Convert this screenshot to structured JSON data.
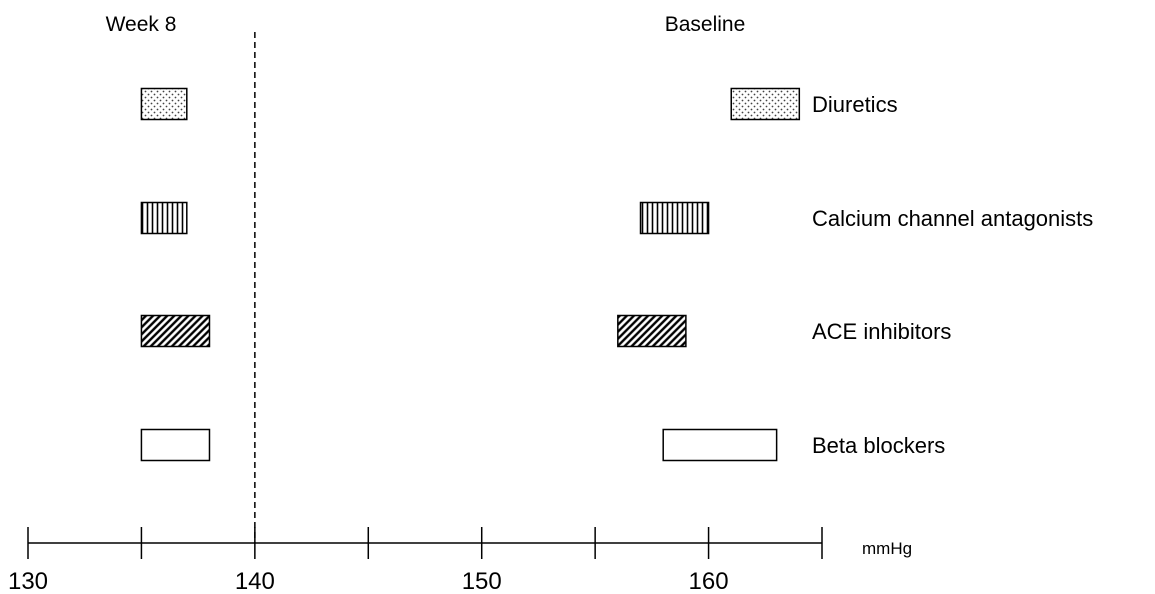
{
  "chart_data": {
    "type": "bar",
    "orientation": "horizontal-range",
    "xlabel": "mmHg",
    "xlim": [
      130,
      165
    ],
    "x_ticks": [
      130,
      135,
      140,
      145,
      150,
      155,
      160,
      165
    ],
    "x_tick_labels": [
      "130",
      "140",
      "150",
      "160"
    ],
    "reference_line": {
      "x": 140,
      "style": "dashed"
    },
    "group_labels": {
      "week8": "Week 8",
      "baseline": "Baseline"
    },
    "categories": [
      "Diuretics",
      "Calcium channel antagonists",
      "ACE inhibitors",
      "Beta blockers"
    ],
    "series": [
      {
        "name": "Week 8",
        "ranges": [
          [
            135,
            137
          ],
          [
            135,
            137
          ],
          [
            135,
            138
          ],
          [
            135,
            138
          ]
        ]
      },
      {
        "name": "Baseline",
        "ranges": [
          [
            161,
            164
          ],
          [
            157,
            160
          ],
          [
            156,
            159
          ],
          [
            158,
            163
          ]
        ]
      }
    ],
    "patterns": [
      "dots",
      "vertical-lines",
      "diagonal-lines",
      "none"
    ]
  }
}
